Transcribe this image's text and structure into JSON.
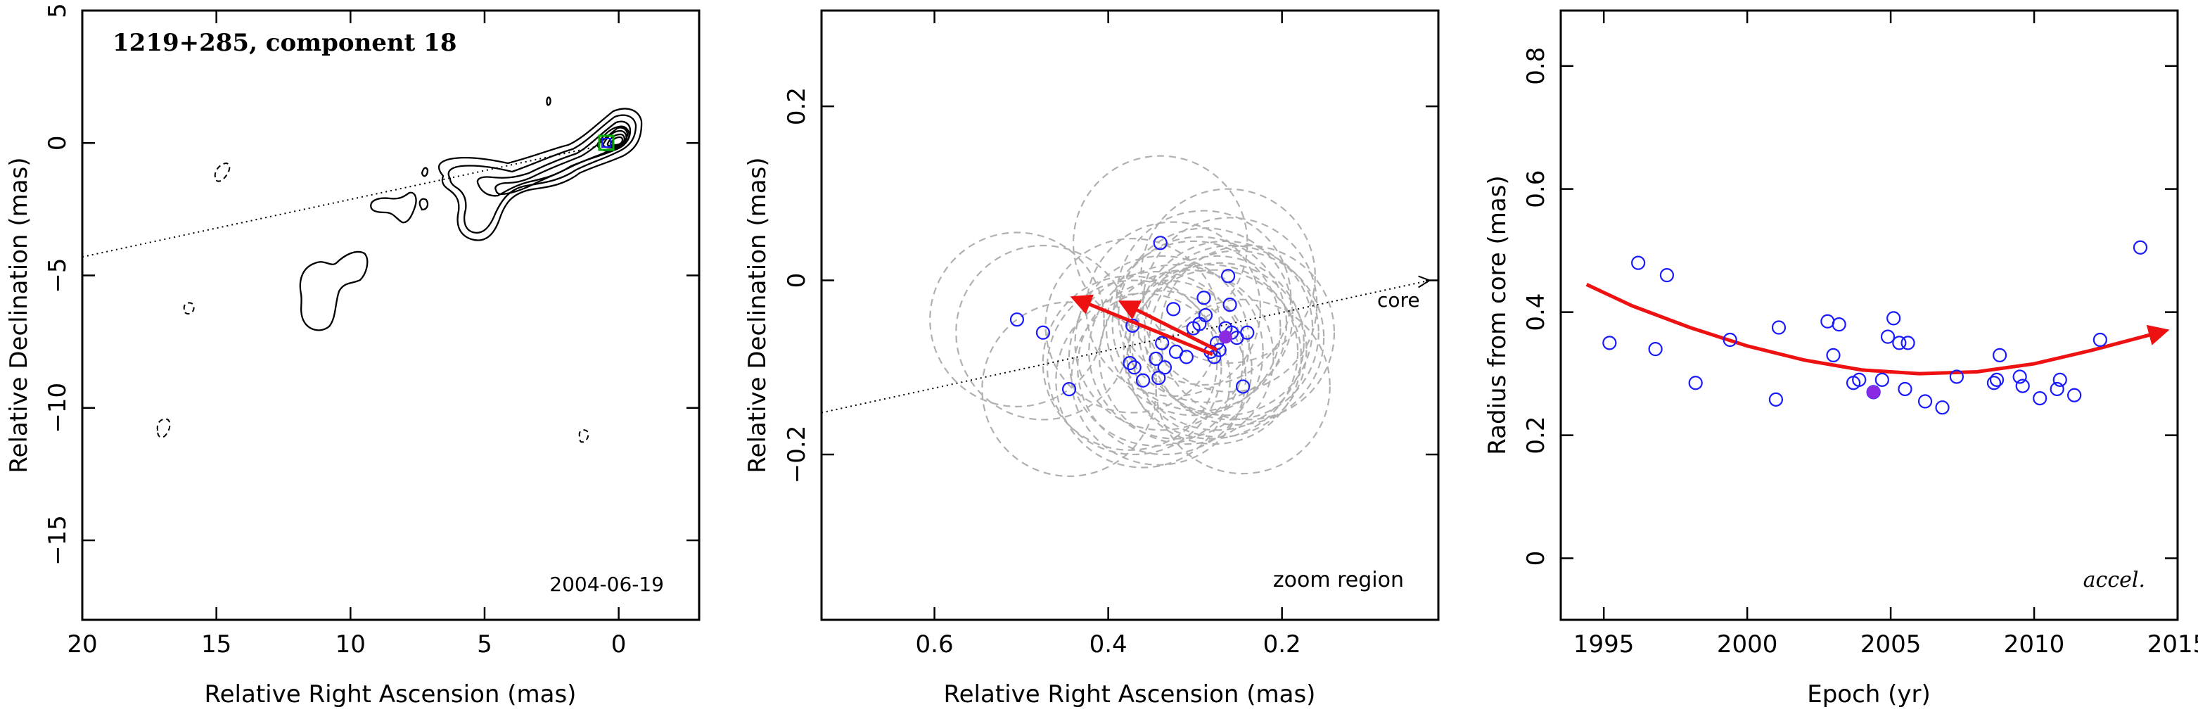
{
  "colors": {
    "contour": "#000000",
    "circles": "#b0b0b0",
    "points": "#1a1aff",
    "highlight": "#8a2be2",
    "arrow": "#ee1111",
    "green_box": "#00aa00"
  },
  "chart_data": [
    {
      "type": "contour",
      "panel": "map",
      "title": "1219+285, component 18",
      "epoch_label": "2004-06-19",
      "xlabel": "Relative Right Ascension (mas)",
      "ylabel": "Relative Declination (mas)",
      "xlim": [
        20,
        -3
      ],
      "ylim": [
        -18,
        5
      ],
      "xticks": [
        20,
        15,
        10,
        5,
        0
      ],
      "yticks": [
        5,
        0,
        -5,
        -10,
        -15
      ],
      "component_position": [
        0.2,
        0.0
      ],
      "jet_axis_line": [
        [
          20,
          -4.3
        ],
        [
          0.2,
          0.0
        ]
      ],
      "emission_regions": [
        {
          "desc": "core",
          "center": [
            0.0,
            0.2
          ]
        },
        {
          "desc": "jet",
          "center": [
            4.5,
            -2.0
          ]
        },
        {
          "desc": "blob",
          "center": [
            10.5,
            -5.5
          ]
        },
        {
          "desc": "knot",
          "center": [
            8.6,
            -2.6
          ]
        }
      ]
    },
    {
      "type": "scatter",
      "panel": "zoom",
      "xlabel": "Relative Right Ascension (mas)",
      "ylabel": "Relative Declination (mas)",
      "xlim": [
        0.73,
        0.02
      ],
      "ylim": [
        -0.39,
        0.31
      ],
      "xticks": [
        0.6,
        0.4,
        0.2
      ],
      "yticks": [
        0.2,
        0,
        -0.2
      ],
      "annotations": [
        "core",
        "zoom region"
      ],
      "points": [
        {
          "x": 0.505,
          "y": -0.045
        },
        {
          "x": 0.475,
          "y": -0.06
        },
        {
          "x": 0.445,
          "y": -0.125
        },
        {
          "x": 0.375,
          "y": -0.095
        },
        {
          "x": 0.37,
          "y": -0.1
        },
        {
          "x": 0.372,
          "y": -0.052
        },
        {
          "x": 0.36,
          "y": -0.115
        },
        {
          "x": 0.345,
          "y": -0.09
        },
        {
          "x": 0.342,
          "y": -0.112
        },
        {
          "x": 0.34,
          "y": 0.043
        },
        {
          "x": 0.338,
          "y": -0.072
        },
        {
          "x": 0.335,
          "y": -0.1
        },
        {
          "x": 0.325,
          "y": -0.033
        },
        {
          "x": 0.322,
          "y": -0.082
        },
        {
          "x": 0.31,
          "y": -0.088
        },
        {
          "x": 0.302,
          "y": -0.055
        },
        {
          "x": 0.295,
          "y": -0.05
        },
        {
          "x": 0.29,
          "y": -0.02
        },
        {
          "x": 0.288,
          "y": -0.04
        },
        {
          "x": 0.282,
          "y": -0.082
        },
        {
          "x": 0.278,
          "y": -0.088
        },
        {
          "x": 0.275,
          "y": -0.072
        },
        {
          "x": 0.272,
          "y": -0.08
        },
        {
          "x": 0.265,
          "y": -0.055
        },
        {
          "x": 0.262,
          "y": 0.005
        },
        {
          "x": 0.26,
          "y": -0.028
        },
        {
          "x": 0.258,
          "y": -0.06
        },
        {
          "x": 0.252,
          "y": -0.066
        },
        {
          "x": 0.245,
          "y": -0.122
        },
        {
          "x": 0.24,
          "y": -0.06
        }
      ],
      "highlight": {
        "x": 0.265,
        "y": -0.065
      },
      "circle_radius": 0.1,
      "velocity_arrows": [
        {
          "from": [
            0.28,
            -0.085
          ],
          "to": [
            0.44,
            -0.02
          ]
        },
        {
          "from": [
            0.275,
            -0.08
          ],
          "to": [
            0.385,
            -0.025
          ]
        }
      ],
      "jet_axis_line": [
        [
          0.73,
          -0.152
        ],
        [
          0.03,
          0.0
        ]
      ]
    },
    {
      "type": "scatter",
      "panel": "radius",
      "xlabel": "Epoch (yr)",
      "ylabel": "Radius from core (mas)",
      "annotation": "accel.",
      "xlim": [
        1993.5,
        2015
      ],
      "ylim": [
        -0.1,
        0.89
      ],
      "xticks": [
        1995,
        2000,
        2005,
        2010,
        2015
      ],
      "yticks": [
        0,
        0.2,
        0.4,
        0.6,
        0.8
      ],
      "x": [
        1995.2,
        1996.2,
        1996.8,
        1997.2,
        1998.2,
        1999.4,
        2001.0,
        2001.1,
        2002.8,
        2003.0,
        2003.2,
        2003.7,
        2003.9,
        2004.4,
        2004.7,
        2004.9,
        2005.1,
        2005.3,
        2005.5,
        2005.6,
        2006.2,
        2006.8,
        2007.3,
        2008.6,
        2008.7,
        2008.8,
        2009.5,
        2009.6,
        2010.2,
        2010.8,
        2010.9,
        2011.4,
        2012.3,
        2013.7
      ],
      "y": [
        0.35,
        0.48,
        0.34,
        0.46,
        0.285,
        0.355,
        0.258,
        0.375,
        0.385,
        0.33,
        0.38,
        0.285,
        0.29,
        0.27,
        0.29,
        0.36,
        0.39,
        0.35,
        0.275,
        0.35,
        0.255,
        0.245,
        0.295,
        0.285,
        0.29,
        0.33,
        0.295,
        0.28,
        0.26,
        0.275,
        0.29,
        0.265,
        0.355,
        0.505
      ],
      "highlight": {
        "x": 2004.4,
        "y": 0.27
      },
      "fit_curve": {
        "x": [
          1994.4,
          1996,
          1998,
          2000,
          2002,
          2004,
          2006,
          2008,
          2010,
          2012,
          2014.6
        ],
        "y": [
          0.445,
          0.41,
          0.375,
          0.345,
          0.322,
          0.306,
          0.3,
          0.303,
          0.316,
          0.338,
          0.37
        ]
      }
    }
  ]
}
